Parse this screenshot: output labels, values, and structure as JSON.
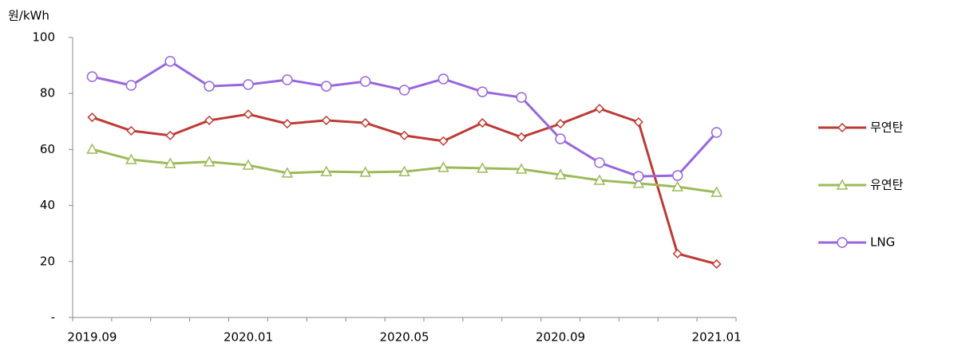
{
  "chart_data": {
    "type": "line",
    "y_label": "원/kWh",
    "categories": [
      "2019.09",
      null,
      null,
      null,
      "2020.01",
      null,
      null,
      null,
      "2020.05",
      null,
      null,
      null,
      "2020.09",
      null,
      null,
      null,
      "2021.01"
    ],
    "series": [
      {
        "name": "무연탄",
        "color": "#be3a34",
        "marker": "diamond",
        "values": [
          71.5,
          66.7,
          65,
          70.4,
          72.6,
          69.2,
          70.4,
          69.5,
          65,
          63,
          69.5,
          64.4,
          69.2,
          74.6,
          69.8,
          22.8,
          19.1
        ]
      },
      {
        "name": "유연탄",
        "color": "#9bbb59",
        "marker": "triangle",
        "values": [
          60.1,
          56.4,
          55,
          55.6,
          54.4,
          51.6,
          52.1,
          51.9,
          52.1,
          53.6,
          53.3,
          53,
          51,
          49,
          47.9,
          46.7,
          44.7
        ]
      },
      {
        "name": "LNG",
        "color": "#9966dd",
        "marker": "circle",
        "values": [
          86,
          82.9,
          91.5,
          82.6,
          83.2,
          84.9,
          82.6,
          84.3,
          81.2,
          85.2,
          80.6,
          78.6,
          63.8,
          55.3,
          50.4,
          50.7,
          66.1
        ]
      }
    ],
    "ylim": [
      0,
      100
    ],
    "yticks": [
      {
        "value": 0,
        "label": "-"
      },
      20,
      40,
      60,
      80,
      100
    ],
    "legend": "right"
  }
}
